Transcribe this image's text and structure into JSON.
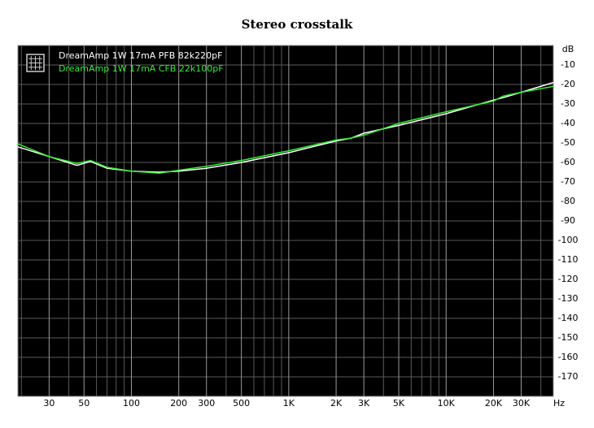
{
  "chart_data": {
    "type": "line",
    "title": "Stereo crosstalk",
    "x_unit": "Hz",
    "log_x": true,
    "grid": true,
    "legend": "upper left",
    "x": [
      19,
      30,
      45,
      55,
      70,
      100,
      150,
      200,
      300,
      500,
      1000,
      2000,
      2500,
      3000,
      5000,
      10000,
      20000,
      23000,
      30000,
      48000
    ],
    "series": [
      {
        "name": "DreamAmp 1W 17mA PFB 82k220pF",
        "color": "#ffffff",
        "values": [
          -52,
          -57,
          -61.5,
          -59.5,
          -63,
          -64.5,
          -65,
          -64.5,
          -63,
          -60,
          -55,
          -49,
          -47.5,
          -45,
          -41,
          -35,
          -28,
          -26.8,
          -24,
          -19
        ]
      },
      {
        "name": "DreamAmp 1W 17mA CFB 22k100pF",
        "color": "#33ee33",
        "values": [
          -50.5,
          -57,
          -60.5,
          -59,
          -62.5,
          -64.5,
          -65.5,
          -64,
          -62,
          -59,
          -54,
          -48.5,
          -47.5,
          -46,
          -40,
          -34,
          -28.5,
          -26,
          -24,
          -21
        ]
      }
    ],
    "xlim": [
      19,
      48000
    ],
    "xticks": [
      30,
      50,
      100,
      200,
      300,
      500,
      {
        "value": 1000,
        "label": "1K"
      },
      {
        "value": 2000,
        "label": "2K"
      },
      {
        "value": 3000,
        "label": "3K"
      },
      {
        "value": 5000,
        "label": "5K"
      },
      {
        "value": 10000,
        "label": "10K"
      },
      {
        "value": 20000,
        "label": "20K"
      },
      {
        "value": 30000,
        "label": "30K"
      }
    ],
    "x_minor_ticks": [
      20,
      40,
      60,
      70,
      80,
      90,
      400,
      600,
      700,
      800,
      900,
      4000,
      6000,
      7000,
      8000,
      9000,
      40000
    ],
    "ylim": [
      -180,
      0
    ],
    "yticks": [
      {
        "value": 0,
        "label": "dB"
      },
      -10,
      -20,
      -30,
      -40,
      -50,
      -60,
      -70,
      -80,
      -90,
      -100,
      -110,
      -120,
      -130,
      -140,
      -150,
      -160,
      -170
    ]
  }
}
